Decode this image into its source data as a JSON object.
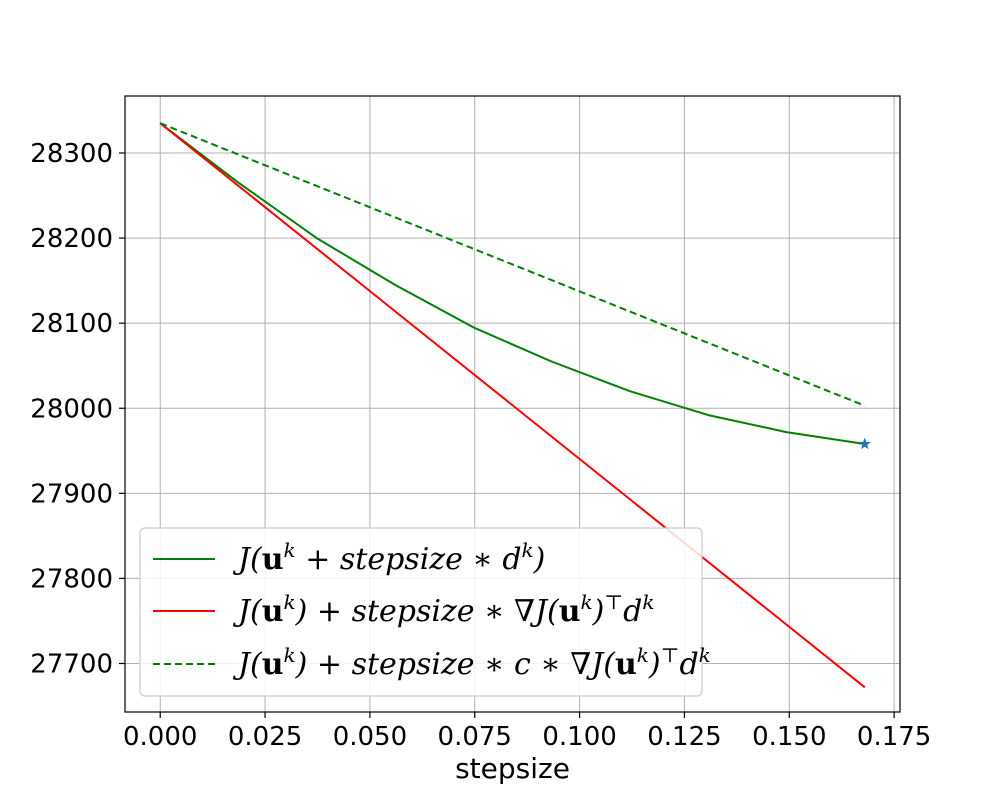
{
  "chart_data": {
    "type": "line",
    "title": "",
    "xlabel": "stepsize",
    "ylabel": "",
    "xlim": [
      -0.0084,
      0.1764
    ],
    "ylim": [
      27643,
      28367
    ],
    "x_ticks": [
      0.0,
      0.025,
      0.05,
      0.075,
      0.1,
      0.125,
      0.15,
      0.175
    ],
    "x_tick_labels": [
      "0.000",
      "0.025",
      "0.050",
      "0.075",
      "0.100",
      "0.125",
      "0.150",
      "0.175"
    ],
    "y_ticks": [
      27700,
      27800,
      27900,
      28000,
      28100,
      28200,
      28300
    ],
    "y_tick_labels": [
      "27700",
      "27800",
      "27900",
      "28000",
      "28100",
      "28200",
      "28300"
    ],
    "grid": true,
    "legend_position": "lower-left",
    "series": [
      {
        "name": "J(u^k + stepsize * d^k)",
        "color": "#008000",
        "dash": "solid",
        "x": [
          0.0,
          0.0187,
          0.0373,
          0.056,
          0.0747,
          0.0933,
          0.112,
          0.1307,
          0.1493,
          0.168
        ],
        "y": [
          28335,
          28265,
          28200,
          28145,
          28095,
          28055,
          28020,
          27992,
          27972,
          27958
        ]
      },
      {
        "name": "J(u^k) + stepsize * ∇J(u^k)^T d^k",
        "color": "#ff0000",
        "dash": "solid",
        "x": [
          0.0,
          0.168
        ],
        "y": [
          28335,
          27672
        ]
      },
      {
        "name": "J(u^k) + stepsize * c * ∇J(u^k)^T d^k",
        "color": "#008000",
        "dash": "dashed",
        "x": [
          0.0,
          0.168
        ],
        "y": [
          28335,
          28003
        ]
      }
    ],
    "markers": [
      {
        "shape": "star",
        "color": "#1f77b4",
        "x": 0.168,
        "y": 27958
      }
    ]
  }
}
